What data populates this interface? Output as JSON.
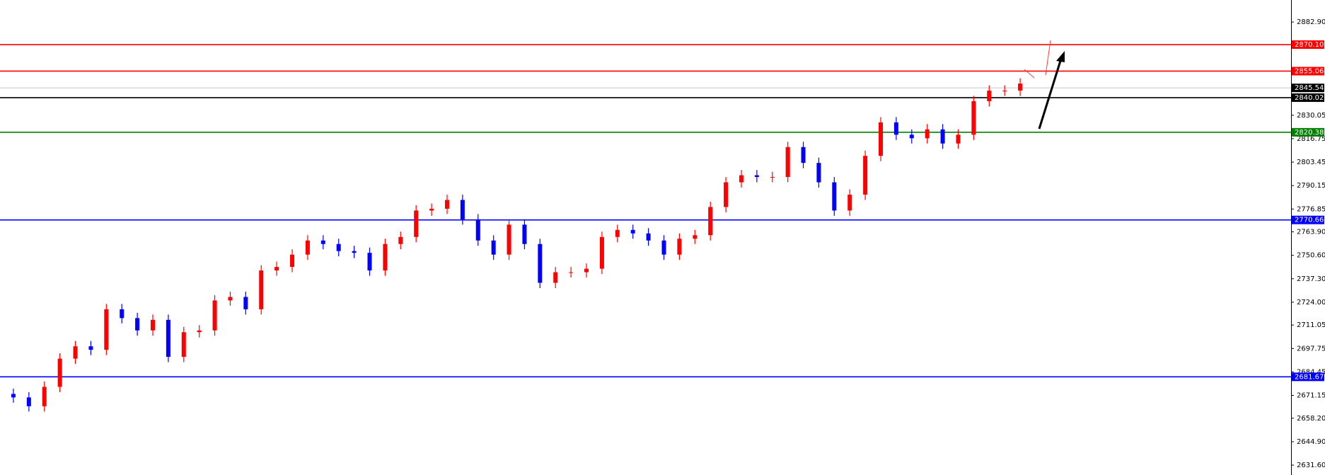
{
  "chart_data": {
    "type": "candlestick",
    "ylim": [
      2626.0,
      2895.4
    ],
    "yticks": [
      {
        "value": 2882.9,
        "label": "2882.90"
      },
      {
        "value": 2830.05,
        "label": "2830.05"
      },
      {
        "value": 2816.75,
        "label": "2816.75"
      },
      {
        "value": 2803.45,
        "label": "2803.45"
      },
      {
        "value": 2790.15,
        "label": "2790.15"
      },
      {
        "value": 2776.85,
        "label": "2776.85"
      },
      {
        "value": 2763.9,
        "label": "2763.90"
      },
      {
        "value": 2750.6,
        "label": "2750.60"
      },
      {
        "value": 2737.3,
        "label": "2737.30"
      },
      {
        "value": 2724.0,
        "label": "2724.00"
      },
      {
        "value": 2711.05,
        "label": "2711.05"
      },
      {
        "value": 2697.75,
        "label": "2697.75"
      },
      {
        "value": 2684.45,
        "label": "2684.45"
      },
      {
        "value": 2671.15,
        "label": "2671.15"
      },
      {
        "value": 2658.2,
        "label": "2658.20"
      },
      {
        "value": 2644.9,
        "label": "2644.90"
      },
      {
        "value": 2631.6,
        "label": "2631.60"
      }
    ],
    "levels": [
      {
        "value": 2870.1,
        "label": "2870.10",
        "color": "#ff0000",
        "box": "#ff0000"
      },
      {
        "value": 2855.06,
        "label": "2855.06",
        "color": "#ff0000",
        "box": "#ff0000"
      },
      {
        "value": 2845.54,
        "label": "2845.54",
        "color": "#c8c8c8",
        "box": "#000000"
      },
      {
        "value": 2840.02,
        "label": "2840.02",
        "color": "#000000",
        "box": "#000000"
      },
      {
        "value": 2820.38,
        "label": "2820.38",
        "color": "#008000",
        "box": "#008000"
      },
      {
        "value": 2770.66,
        "label": "2770.66",
        "color": "#0000ff",
        "box": "#0000ff"
      },
      {
        "value": 2681.67,
        "label": "2681.67",
        "color": "#0000ff",
        "box": "#0000ff"
      }
    ],
    "up_color": "#ff0000",
    "down_color": "#0000ff",
    "candles": {
      "open": [
        2672,
        2670,
        2665,
        2676,
        2692,
        2699,
        2697,
        2720,
        2715,
        2708,
        2714,
        2693,
        2707,
        2708,
        2725,
        2727,
        2720,
        2742,
        2744,
        2751,
        2759,
        2757,
        2753,
        2752,
        2742,
        2757,
        2761,
        2776,
        2777,
        2782,
        2771,
        2759,
        2751,
        2768,
        2757,
        2735,
        2741,
        2741,
        2743,
        2761,
        2765,
        2763,
        2759,
        2751,
        2760,
        2762,
        2778,
        2792,
        2796,
        2795,
        2795,
        2812,
        2803,
        2792,
        2776,
        2785,
        2807,
        2826,
        2819,
        2817,
        2822,
        2814,
        2819,
        2838,
        2844,
        2844
      ],
      "high": [
        2675,
        2673,
        2679,
        2695,
        2702,
        2702,
        2723,
        2723,
        2718,
        2717,
        2717,
        2710,
        2711,
        2728,
        2730,
        2730,
        2745,
        2747,
        2754,
        2762,
        2762,
        2760,
        2756,
        2755,
        2760,
        2764,
        2779,
        2780,
        2785,
        2785,
        2774,
        2762,
        2771,
        2771,
        2760,
        2744,
        2744,
        2746,
        2764,
        2768,
        2768,
        2766,
        2762,
        2763,
        2765,
        2781,
        2795,
        2799,
        2799,
        2798,
        2815,
        2815,
        2806,
        2795,
        2788,
        2810,
        2829,
        2829,
        2822,
        2825,
        2825,
        2822,
        2841,
        2847,
        2847,
        2851
      ],
      "low": [
        2667,
        2662,
        2662,
        2673,
        2689,
        2694,
        2694,
        2712,
        2705,
        2705,
        2690,
        2690,
        2704,
        2705,
        2722,
        2717,
        2717,
        2739,
        2741,
        2748,
        2754,
        2750,
        2749,
        2739,
        2739,
        2754,
        2758,
        2773,
        2774,
        2768,
        2756,
        2748,
        2748,
        2754,
        2732,
        2732,
        2738,
        2738,
        2740,
        2758,
        2760,
        2756,
        2748,
        2748,
        2757,
        2759,
        2775,
        2789,
        2792,
        2792,
        2792,
        2800,
        2789,
        2773,
        2773,
        2782,
        2804,
        2816,
        2814,
        2814,
        2811,
        2811,
        2816,
        2835,
        2841,
        2841
      ],
      "close": [
        2670,
        2665,
        2676,
        2692,
        2699,
        2697,
        2720,
        2715,
        2708,
        2714,
        2693,
        2707,
        2708,
        2725,
        2727,
        2720,
        2742,
        2744,
        2751,
        2759,
        2757,
        2753,
        2752,
        2742,
        2757,
        2761,
        2776,
        2777,
        2782,
        2771,
        2759,
        2751,
        2768,
        2757,
        2735,
        2741,
        2741,
        2743,
        2761,
        2765,
        2763,
        2759,
        2751,
        2760,
        2762,
        2778,
        2792,
        2796,
        2795,
        2795,
        2812,
        2803,
        2792,
        2776,
        2785,
        2807,
        2826,
        2819,
        2817,
        2822,
        2814,
        2819,
        2838,
        2844,
        2844,
        2848
      ]
    }
  }
}
